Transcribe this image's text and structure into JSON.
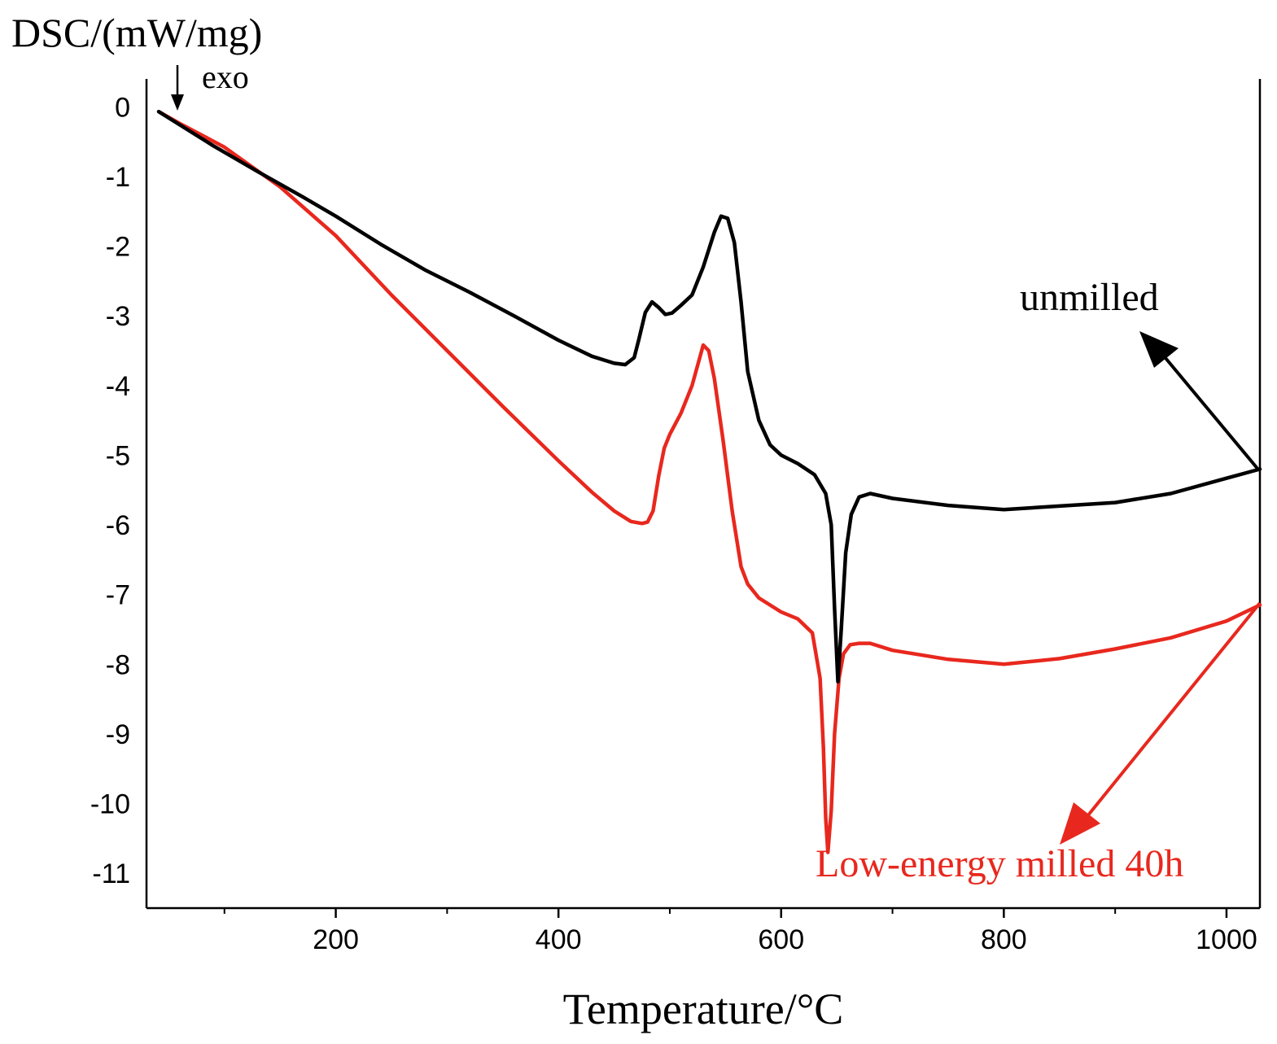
{
  "chart_data": {
    "type": "line",
    "title": "",
    "ylabel": "DSC/(mW/mg)",
    "xlabel": "Temperature/°C",
    "exo_label": "exo",
    "xlim": [
      30,
      1030
    ],
    "ylim": [
      -11.5,
      0.4
    ],
    "x_ticks_major": [
      200,
      400,
      600,
      800,
      1000
    ],
    "x_ticks_minor": [
      100,
      300,
      500,
      700,
      900
    ],
    "x_tick_labels": [
      "200",
      "400",
      "600",
      "800",
      "1000"
    ],
    "y_ticks": [
      0,
      -1,
      -2,
      -3,
      -4,
      -5,
      -6,
      -7,
      -8,
      -9,
      -10,
      -11
    ],
    "y_tick_labels": [
      "0",
      "-1",
      "-2",
      "-3",
      "-4",
      "-5",
      "-6",
      "-7",
      "-8",
      "-9",
      "-10",
      "-11"
    ],
    "colors": {
      "unmilled": "#000000",
      "milled": "#e8281e",
      "axis": "#000000"
    },
    "series": [
      {
        "name": "unmilled",
        "label": "unmilled",
        "color": "#000000",
        "x": [
          41,
          60,
          90,
          130,
          170,
          200,
          240,
          280,
          320,
          360,
          400,
          430,
          450,
          460,
          468,
          472,
          478,
          484,
          490,
          496,
          502,
          510,
          520,
          530,
          540,
          546,
          552,
          558,
          564,
          570,
          580,
          590,
          600,
          615,
          630,
          640,
          645,
          648,
          651,
          654,
          658,
          663,
          670,
          680,
          700,
          750,
          800,
          850,
          900,
          950,
          1000,
          1030
        ],
        "y": [
          -0.07,
          -0.26,
          -0.56,
          -0.93,
          -1.29,
          -1.57,
          -1.97,
          -2.34,
          -2.66,
          -3.0,
          -3.35,
          -3.58,
          -3.68,
          -3.7,
          -3.6,
          -3.35,
          -2.95,
          -2.8,
          -2.88,
          -2.98,
          -2.96,
          -2.85,
          -2.7,
          -2.3,
          -1.8,
          -1.57,
          -1.6,
          -1.95,
          -2.8,
          -3.8,
          -4.5,
          -4.85,
          -5.0,
          -5.12,
          -5.28,
          -5.55,
          -6.0,
          -7.2,
          -8.25,
          -7.5,
          -6.4,
          -5.85,
          -5.6,
          -5.55,
          -5.62,
          -5.72,
          -5.78,
          -5.73,
          -5.68,
          -5.55,
          -5.33,
          -5.2
        ]
      },
      {
        "name": "milled",
        "label": "Low-energy milled 40h",
        "color": "#e8281e",
        "x": [
          41,
          60,
          100,
          150,
          200,
          250,
          300,
          350,
          400,
          430,
          450,
          465,
          475,
          480,
          485,
          490,
          495,
          500,
          510,
          520,
          530,
          535,
          540,
          548,
          556,
          564,
          570,
          580,
          590,
          600,
          615,
          628,
          635,
          638,
          640,
          642,
          645,
          648,
          652,
          656,
          662,
          670,
          680,
          700,
          750,
          800,
          850,
          900,
          950,
          1000,
          1030
        ],
        "y": [
          -0.07,
          -0.24,
          -0.58,
          -1.15,
          -1.85,
          -2.7,
          -3.5,
          -4.3,
          -5.08,
          -5.53,
          -5.8,
          -5.95,
          -5.98,
          -5.96,
          -5.8,
          -5.3,
          -4.9,
          -4.7,
          -4.4,
          -4.0,
          -3.42,
          -3.5,
          -3.9,
          -4.8,
          -5.8,
          -6.6,
          -6.85,
          -7.05,
          -7.15,
          -7.25,
          -7.35,
          -7.55,
          -8.2,
          -9.2,
          -10.2,
          -10.7,
          -10.1,
          -9.0,
          -8.2,
          -7.85,
          -7.72,
          -7.7,
          -7.7,
          -7.8,
          -7.93,
          -8.0,
          -7.92,
          -7.78,
          -7.62,
          -7.38,
          -7.15
        ]
      }
    ]
  }
}
